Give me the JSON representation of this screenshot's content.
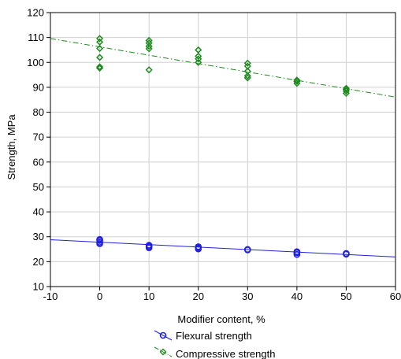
{
  "chart_data": {
    "type": "scatter",
    "xlabel": "Modifier content, %",
    "ylabel": "Strength, MPa",
    "xlim": [
      -10,
      60
    ],
    "ylim": [
      10,
      120
    ],
    "xticks": [
      -10,
      0,
      10,
      20,
      30,
      40,
      50,
      60
    ],
    "yticks": [
      10,
      20,
      30,
      40,
      50,
      60,
      70,
      80,
      90,
      100,
      110,
      120
    ],
    "grid": true,
    "legend_position": "bottom",
    "series": [
      {
        "name": "Flexural strength",
        "color": "#1f1fe0",
        "marker": "circle",
        "points": [
          [
            0,
            27.2
          ],
          [
            0,
            27.8
          ],
          [
            0,
            28.5
          ],
          [
            0,
            28.9
          ],
          [
            10,
            25.6
          ],
          [
            10,
            26.1
          ],
          [
            10,
            26.6
          ],
          [
            20,
            25.1
          ],
          [
            20,
            25.6
          ],
          [
            20,
            26.0
          ],
          [
            30,
            24.7
          ],
          [
            30,
            24.9
          ],
          [
            40,
            22.9
          ],
          [
            40,
            23.6
          ],
          [
            40,
            24.0
          ],
          [
            50,
            23.0
          ],
          [
            50,
            23.3
          ]
        ],
        "trend": {
          "x": [
            -10,
            60
          ],
          "y": [
            28.8,
            21.9
          ],
          "style": "solid"
        }
      },
      {
        "name": "Compressive strength",
        "color": "#1e8a1e",
        "marker": "diamond",
        "points": [
          [
            0,
            97.7
          ],
          [
            0,
            98.2
          ],
          [
            0,
            102.0
          ],
          [
            0,
            105.6
          ],
          [
            0,
            108.2
          ],
          [
            0,
            109.6
          ],
          [
            10,
            97.0
          ],
          [
            10,
            105.5
          ],
          [
            10,
            106.5
          ],
          [
            10,
            107.8
          ],
          [
            10,
            108.8
          ],
          [
            20,
            100.0
          ],
          [
            20,
            101.4
          ],
          [
            20,
            102.5
          ],
          [
            20,
            105.0
          ],
          [
            30,
            93.8
          ],
          [
            30,
            94.6
          ],
          [
            30,
            96.5
          ],
          [
            30,
            98.5
          ],
          [
            30,
            99.7
          ],
          [
            40,
            91.6
          ],
          [
            40,
            92.4
          ],
          [
            40,
            92.9
          ],
          [
            50,
            87.6
          ],
          [
            50,
            88.5
          ],
          [
            50,
            89.2
          ],
          [
            50,
            89.6
          ]
        ],
        "trend": {
          "x": [
            -10,
            60
          ],
          "y": [
            109.6,
            86.1
          ],
          "style": "dash-dot"
        }
      }
    ]
  }
}
